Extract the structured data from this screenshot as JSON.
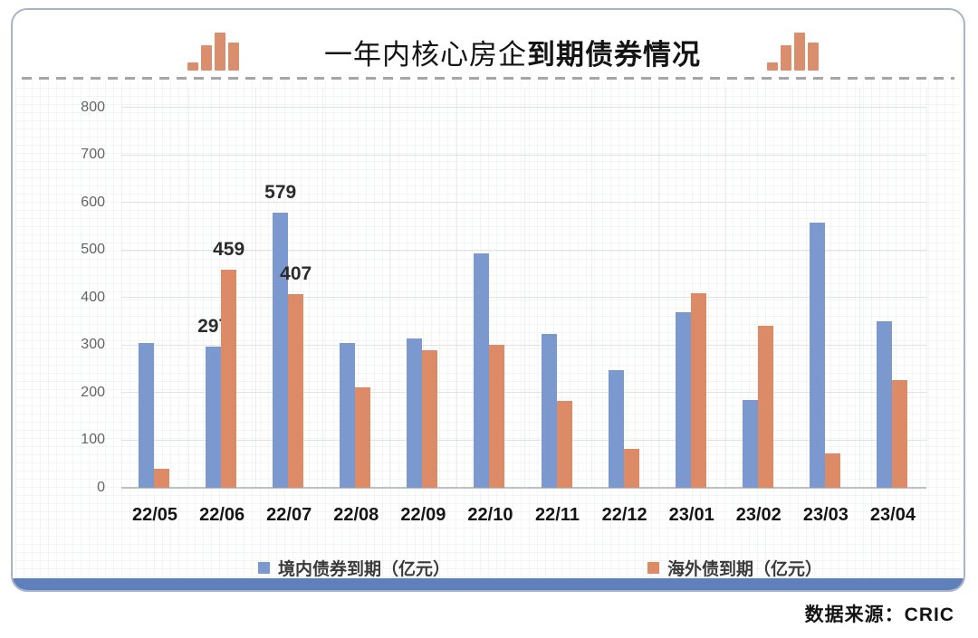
{
  "title": {
    "normal": "一年内核心房企",
    "bold": "到期债券情况"
  },
  "icons": {
    "title_left": "bar-chart-icon",
    "title_right": "bar-chart-icon"
  },
  "footer": {
    "source": "数据来源：CRIC"
  },
  "colors": {
    "domestic_bar": "#7b99cf",
    "overseas_bar": "#dd8a67",
    "footer_bar": "#5e80bc",
    "title_icon": "#d98e6d"
  },
  "chart_data": {
    "type": "bar",
    "title": "一年内核心房企到期债券情况",
    "xlabel": "",
    "ylabel": "",
    "ylim": [
      0,
      800
    ],
    "yticks": [
      0,
      100,
      200,
      300,
      400,
      500,
      600,
      700,
      800
    ],
    "grid": true,
    "legend_position": "bottom",
    "categories": [
      "22/05",
      "22/06",
      "22/07",
      "22/08",
      "22/09",
      "22/10",
      "22/11",
      "22/12",
      "23/01",
      "23/02",
      "23/03",
      "23/04"
    ],
    "series": [
      {
        "name": "境内债券到期（亿元）",
        "color": "#7b99cf",
        "values": [
          305,
          297,
          579,
          305,
          313,
          493,
          324,
          247,
          370,
          185,
          557,
          350
        ],
        "label_indices": [
          1,
          2
        ]
      },
      {
        "name": "海外债到期（亿元）",
        "color": "#dd8a67",
        "values": [
          40,
          459,
          407,
          212,
          290,
          300,
          183,
          82,
          410,
          340,
          73,
          226
        ],
        "label_indices": [
          1,
          2
        ]
      }
    ]
  }
}
